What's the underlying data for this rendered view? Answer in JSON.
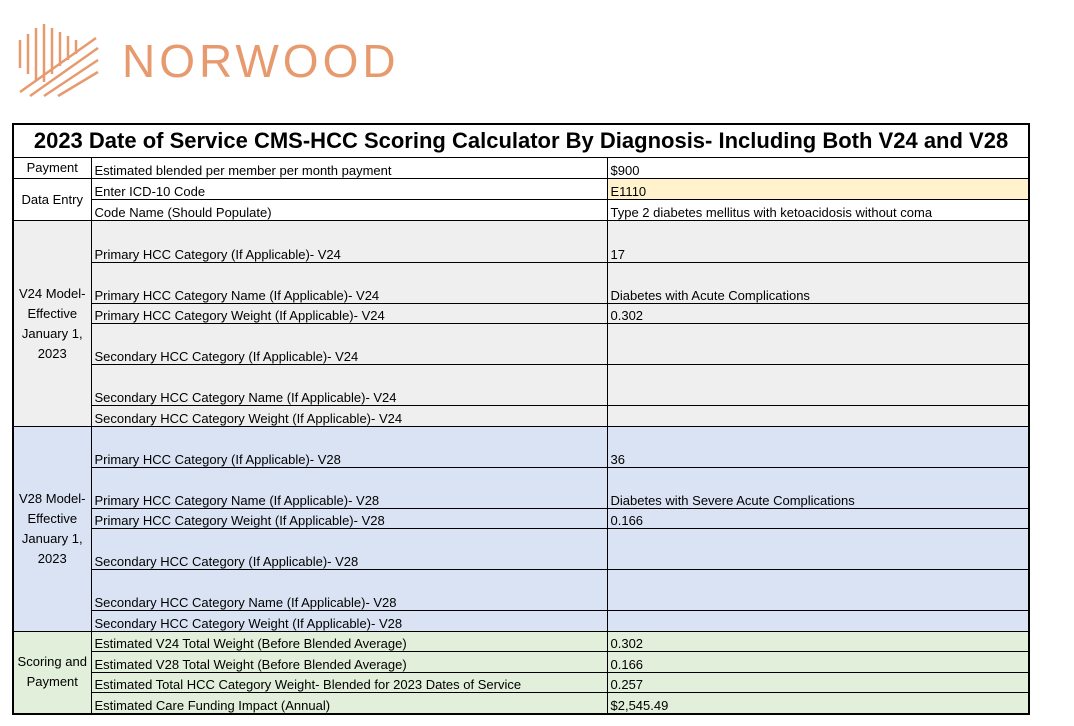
{
  "brand": "NORWOOD",
  "table": {
    "title": "2023 Date of Service CMS-HCC Scoring Calculator By Diagnosis- Including Both V24 and V28",
    "sections": [
      {
        "label": "Payment",
        "fill": "#ffffff",
        "rows": [
          {
            "label": "Estimated blended per member per month payment",
            "value": "$900"
          }
        ]
      },
      {
        "label": "Data Entry",
        "fill": "#ffffff",
        "rows": [
          {
            "label": "Enter ICD-10 Code",
            "value": "E1110",
            "fill": "#fff2cc"
          },
          {
            "label": "Code Name (Should Populate)",
            "value": "Type 2 diabetes mellitus with ketoacidosis without coma"
          }
        ]
      },
      {
        "label": "V24 Model-Effective January 1, 2023",
        "fill": "#efefef",
        "rows": [
          {
            "label": "Primary HCC Category (If Applicable)- V24",
            "value": "17"
          },
          {
            "label": "Primary HCC Category Name (If Applicable)- V24",
            "value": "Diabetes with Acute Complications"
          },
          {
            "label": "Primary HCC Category Weight (If Applicable)- V24",
            "value": "0.302"
          },
          {
            "label": "Secondary HCC Category (If Applicable)- V24"
          },
          {
            "label": "Secondary HCC Category Name (If Applicable)- V24"
          },
          {
            "label": "Secondary HCC Category Weight (If Applicable)- V24"
          }
        ]
      },
      {
        "label": "V28 Model-Effective January 1, 2023",
        "fill": "#dae3f3",
        "rows": [
          {
            "label": "Primary HCC Category (If Applicable)- V28",
            "value": "36"
          },
          {
            "label": "Primary HCC Category Name (If Applicable)- V28",
            "value": "Diabetes with Severe Acute Complications"
          },
          {
            "label": "Primary HCC Category Weight (If Applicable)- V28",
            "value": "0.166"
          },
          {
            "label": "Secondary HCC Category (If Applicable)- V28"
          },
          {
            "label": "Secondary HCC Category Name (If Applicable)- V28"
          },
          {
            "label": "Secondary HCC Category Weight (If Applicable)- V28"
          }
        ]
      },
      {
        "label": "Scoring and Payment",
        "fill": "#e2efda",
        "rows": [
          {
            "label": "Estimated V24 Total Weight (Before Blended Average)",
            "value": "0.302"
          },
          {
            "label": "Estimated V28 Total Weight (Before Blended Average)",
            "value": "0.166"
          },
          {
            "label": "Estimated Total HCC Category Weight- Blended for 2023 Dates of Service",
            "value": "0.257"
          },
          {
            "label": "Estimated Care Funding Impact (Annual)",
            "value": "$2,545.49"
          }
        ]
      }
    ]
  }
}
